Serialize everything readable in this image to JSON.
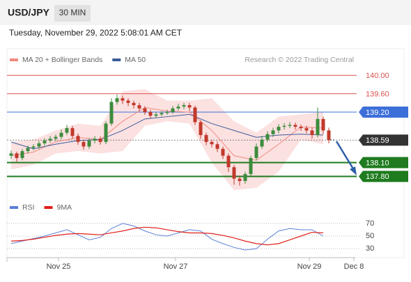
{
  "header": {
    "symbol": "USD/JPY",
    "interval": "30 MIN",
    "timestamp": "Tuesday, November 29, 2022 5:08:01 AM CET"
  },
  "chart_data": [
    {
      "type": "candlestick",
      "legend": [
        {
          "name": "MA 20 + Bollinger Bands",
          "color": "#f08a80"
        },
        {
          "name": "MA 50",
          "color": "#3b5b9a"
        }
      ],
      "source": "Research © 2022 Trading Central",
      "up_color": "#3c8c3c",
      "down_color": "#c0392b",
      "xlim": [
        0,
        62
      ],
      "xticks": [
        {
          "value": 9,
          "label": "Nov 25"
        },
        {
          "value": 30,
          "label": "Nov 27"
        },
        {
          "value": 54,
          "label": "Nov 29"
        },
        {
          "value": 62,
          "label": "Dec 8"
        }
      ],
      "ylim": [
        137.35,
        140.2
      ],
      "open": [
        138.25,
        138.3,
        138.2,
        138.35,
        138.42,
        138.45,
        138.52,
        138.58,
        138.62,
        138.66,
        138.75,
        138.85,
        138.68,
        138.55,
        138.45,
        138.58,
        138.62,
        138.55,
        138.95,
        139.42,
        139.5,
        139.45,
        139.4,
        139.35,
        139.28,
        139.2,
        139.12,
        139.15,
        139.18,
        139.2,
        139.28,
        139.32,
        139.35,
        139.3,
        138.98,
        138.7,
        138.55,
        138.5,
        138.4,
        138.25,
        138.0,
        137.75,
        137.7,
        137.85,
        138.2,
        138.45,
        138.6,
        138.72,
        138.8,
        138.88,
        138.9,
        138.92,
        138.88,
        138.85,
        138.8,
        138.7,
        139.05,
        138.8
      ],
      "high": [
        138.36,
        138.34,
        138.4,
        138.47,
        138.5,
        138.57,
        138.63,
        138.68,
        138.71,
        138.82,
        138.92,
        138.9,
        138.73,
        138.6,
        138.63,
        138.68,
        138.67,
        139.0,
        139.5,
        139.58,
        139.56,
        139.5,
        139.45,
        139.4,
        139.33,
        139.25,
        139.2,
        139.22,
        139.25,
        139.33,
        139.38,
        139.4,
        139.4,
        139.34,
        139.02,
        138.75,
        138.6,
        138.56,
        138.45,
        138.3,
        138.05,
        137.82,
        137.9,
        138.25,
        138.52,
        138.68,
        138.78,
        138.86,
        138.94,
        138.96,
        138.98,
        138.97,
        138.93,
        138.9,
        138.86,
        139.3,
        139.1,
        138.86
      ],
      "low": [
        138.18,
        138.12,
        138.15,
        138.3,
        138.37,
        138.4,
        138.47,
        138.53,
        138.57,
        138.61,
        138.7,
        138.62,
        138.49,
        138.38,
        138.4,
        138.52,
        138.49,
        138.5,
        138.9,
        139.36,
        139.38,
        139.33,
        139.28,
        139.22,
        139.14,
        139.07,
        139.08,
        139.11,
        139.14,
        139.16,
        139.23,
        139.26,
        139.22,
        138.92,
        138.62,
        138.48,
        138.43,
        138.33,
        138.18,
        137.9,
        137.62,
        137.6,
        137.64,
        137.8,
        138.15,
        138.4,
        138.55,
        138.66,
        138.74,
        138.82,
        138.85,
        138.82,
        138.79,
        138.74,
        138.62,
        138.65,
        138.72,
        138.52
      ],
      "close": [
        138.3,
        138.2,
        138.35,
        138.42,
        138.45,
        138.52,
        138.58,
        138.62,
        138.66,
        138.75,
        138.85,
        138.68,
        138.55,
        138.45,
        138.58,
        138.62,
        138.55,
        138.95,
        139.42,
        139.5,
        139.45,
        139.4,
        139.35,
        139.28,
        139.2,
        139.12,
        139.15,
        139.18,
        139.2,
        139.28,
        139.32,
        139.35,
        139.3,
        138.98,
        138.7,
        138.55,
        138.5,
        138.4,
        138.25,
        138.0,
        137.75,
        137.7,
        137.85,
        138.2,
        138.45,
        138.6,
        138.72,
        138.8,
        138.88,
        138.9,
        138.92,
        138.88,
        138.85,
        138.8,
        138.7,
        139.05,
        138.8,
        138.59
      ],
      "bands": {
        "x": [
          0.5,
          4.5,
          8.5,
          12.5,
          16.5,
          20.5,
          24.5,
          28.5,
          32.5,
          36.5,
          40.5,
          44.5,
          48.5,
          52.5,
          56.5
        ],
        "upper": [
          138.55,
          138.6,
          138.8,
          138.95,
          138.9,
          139.65,
          139.7,
          139.45,
          139.45,
          139.5,
          139.0,
          138.75,
          139.1,
          139.15,
          139.2
        ],
        "lower": [
          137.95,
          138.05,
          138.3,
          138.35,
          138.3,
          138.35,
          138.9,
          139.0,
          138.95,
          138.1,
          137.5,
          137.55,
          137.9,
          138.6,
          138.5
        ],
        "color": "#fcdcdc"
      },
      "series": [
        {
          "color": "#f08a80",
          "x": [
            0.5,
            4.5,
            8.5,
            12.5,
            16.5,
            20.5,
            24.5,
            28.5,
            32.5,
            36.5,
            40.5,
            44.5,
            48.5,
            52.5,
            56.5
          ],
          "values": [
            138.25,
            138.33,
            138.55,
            138.65,
            138.6,
            139.0,
            139.3,
            139.22,
            139.2,
            138.8,
            138.25,
            138.15,
            138.5,
            138.88,
            138.85
          ]
        },
        {
          "color": "#3b5b9a",
          "x": [
            0.5,
            4.5,
            8.5,
            12.5,
            16.5,
            20.5,
            24.5,
            28.5,
            32.5,
            36.5,
            40.5,
            44.5,
            48.5,
            52.5,
            56.5
          ],
          "values": [
            138.55,
            138.4,
            138.5,
            138.58,
            138.6,
            138.8,
            139.05,
            139.1,
            139.15,
            138.95,
            138.8,
            138.65,
            138.7,
            138.72,
            138.7
          ]
        }
      ],
      "levels": [
        {
          "value": 140,
          "label": "140.00",
          "color": "#d9534f"
        },
        {
          "value": 139.6,
          "label": "139.60",
          "color": "#d9534f"
        },
        {
          "value": 139.2,
          "label": "139.20",
          "color": "#3d6fd9"
        },
        {
          "value": 138.59,
          "color": "#333333"
        },
        {
          "value": 138.1,
          "label": "138.10",
          "color": "#1e7b1e"
        },
        {
          "value": 137.8,
          "label": "137.80",
          "color": "#1e7b1e"
        }
      ]
    },
    {
      "type": "line",
      "xlim": [
        0,
        62
      ],
      "ylim": [
        18,
        82
      ],
      "yticks": [
        70,
        50,
        30
      ],
      "series": [
        {
          "name": "RSI",
          "color": "#5b7fd6",
          "x": [
            0.5,
            2.5,
            4.5,
            6.5,
            8.5,
            10.5,
            12.5,
            14.5,
            16.5,
            18.5,
            20.5,
            22.5,
            24.5,
            26.5,
            28.5,
            30.5,
            32.5,
            34.5,
            36.5,
            38.5,
            40.5,
            42.5,
            44.5,
            46.5,
            48.5,
            50.5,
            52.5,
            54.5,
            56.5
          ],
          "values": [
            38,
            42,
            46,
            50,
            55,
            60,
            52,
            44,
            48,
            62,
            70,
            66,
            58,
            52,
            50,
            55,
            60,
            58,
            45,
            38,
            32,
            28,
            30,
            45,
            58,
            62,
            60,
            60,
            50
          ]
        },
        {
          "name": "9MA",
          "color": "#e0201b",
          "x": [
            0.5,
            2.5,
            4.5,
            6.5,
            8.5,
            10.5,
            12.5,
            14.5,
            16.5,
            18.5,
            20.5,
            22.5,
            24.5,
            26.5,
            28.5,
            30.5,
            32.5,
            34.5,
            36.5,
            38.5,
            40.5,
            42.5,
            44.5,
            46.5,
            48.5,
            50.5,
            52.5,
            54.5,
            56.5
          ],
          "values": [
            42,
            43,
            45,
            48,
            51,
            53,
            54,
            53,
            52,
            55,
            58,
            62,
            64,
            63,
            60,
            57,
            55,
            55,
            54,
            51,
            47,
            42,
            38,
            36,
            38,
            44,
            50,
            56,
            55
          ]
        }
      ]
    }
  ]
}
